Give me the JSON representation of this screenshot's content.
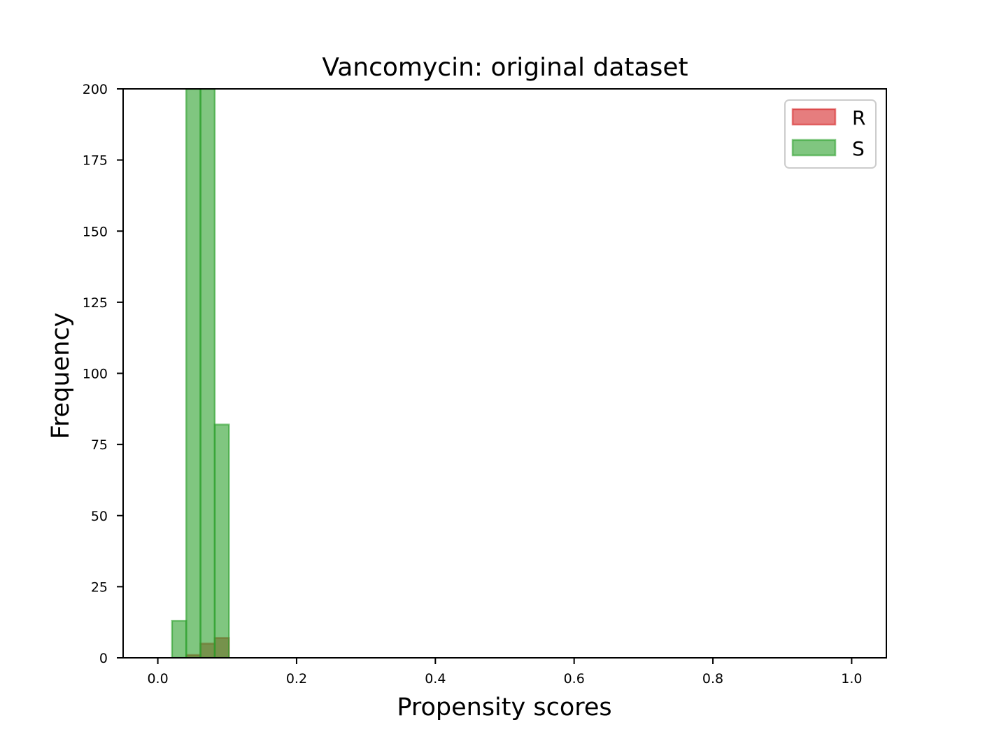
{
  "chart_data": {
    "type": "bar",
    "title": "Vancomycin: original dataset",
    "xlabel": "Propensity scores",
    "ylabel": "Frequency",
    "xlim": [
      -0.05,
      1.05
    ],
    "ylim": [
      0,
      200
    ],
    "xticks": [
      0.0,
      0.2,
      0.4,
      0.6,
      0.8,
      1.0
    ],
    "xtick_labels": [
      "0.0",
      "0.2",
      "0.4",
      "0.6",
      "0.8",
      "1.0"
    ],
    "yticks": [
      0,
      25,
      50,
      75,
      100,
      125,
      150,
      175,
      200
    ],
    "ytick_labels": [
      "0",
      "25",
      "50",
      "75",
      "100",
      "125",
      "150",
      "175",
      "200"
    ],
    "grid": false,
    "legend_position": "top-right",
    "bin_width": 0.0205,
    "series": [
      {
        "name": "R",
        "color": "#d62728",
        "bins": [
          {
            "x0": 0.0205,
            "count": 0
          },
          {
            "x0": 0.041,
            "count": 1
          },
          {
            "x0": 0.0615,
            "count": 5
          },
          {
            "x0": 0.082,
            "count": 7
          }
        ]
      },
      {
        "name": "S",
        "color": "#2ca02c",
        "bins": [
          {
            "x0": 0.0205,
            "count": 13
          },
          {
            "x0": 0.041,
            "count": 200
          },
          {
            "x0": 0.0615,
            "count": 200
          },
          {
            "x0": 0.082,
            "count": 82
          }
        ]
      }
    ]
  }
}
